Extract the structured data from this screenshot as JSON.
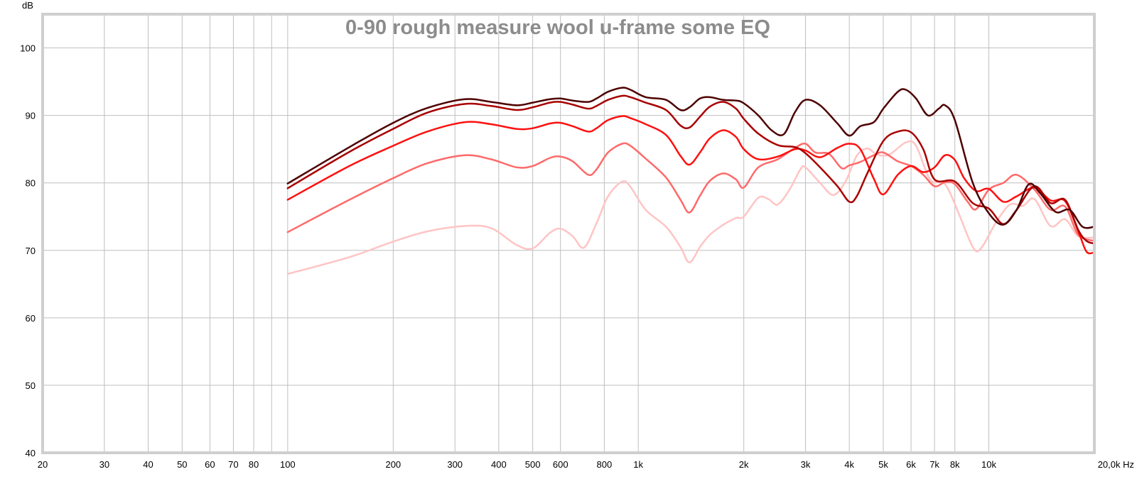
{
  "chart_data": {
    "type": "line",
    "title": "0-90 rough measure wool u-frame some EQ",
    "ylabel": "dB",
    "xunit": "Hz",
    "x_scale": "log",
    "xlim": [
      20,
      20000
    ],
    "ylim": [
      40,
      105
    ],
    "grid": true,
    "yticks": [
      {
        "value": 40,
        "label": "40"
      },
      {
        "value": 50,
        "label": "50"
      },
      {
        "value": 60,
        "label": "60"
      },
      {
        "value": 70,
        "label": "70"
      },
      {
        "value": 80,
        "label": "80"
      },
      {
        "value": 90,
        "label": "90"
      },
      {
        "value": 100,
        "label": "100"
      }
    ],
    "xticks": [
      {
        "value": 20,
        "label": "20"
      },
      {
        "value": 30,
        "label": "30"
      },
      {
        "value": 40,
        "label": "40"
      },
      {
        "value": 50,
        "label": "50"
      },
      {
        "value": 60,
        "label": "60"
      },
      {
        "value": 70,
        "label": "70"
      },
      {
        "value": 80,
        "label": "80"
      },
      {
        "value": 100,
        "label": "100"
      },
      {
        "value": 200,
        "label": "200"
      },
      {
        "value": 300,
        "label": "300"
      },
      {
        "value": 400,
        "label": "400"
      },
      {
        "value": 500,
        "label": "500"
      },
      {
        "value": 600,
        "label": "600"
      },
      {
        "value": 800,
        "label": "800"
      },
      {
        "value": 1000,
        "label": "1k"
      },
      {
        "value": 2000,
        "label": "2k"
      },
      {
        "value": 3000,
        "label": "3k"
      },
      {
        "value": 4000,
        "label": "4k"
      },
      {
        "value": 5000,
        "label": "5k"
      },
      {
        "value": 6000,
        "label": "6k"
      },
      {
        "value": 7000,
        "label": "7k"
      },
      {
        "value": 8000,
        "label": "8k"
      },
      {
        "value": 10000,
        "label": "10k"
      },
      {
        "value": 20000,
        "label": "20,0k Hz"
      }
    ],
    "minor_gridlines": [
      90
    ],
    "series": [
      {
        "color": "#ffc4c4",
        "points": [
          [
            100,
            66.5
          ],
          [
            150,
            69
          ],
          [
            200,
            71.3
          ],
          [
            250,
            72.8
          ],
          [
            320,
            73.6
          ],
          [
            380,
            73.3
          ],
          [
            450,
            70.8
          ],
          [
            500,
            70.3
          ],
          [
            560,
            72.6
          ],
          [
            600,
            73.2
          ],
          [
            650,
            72.1
          ],
          [
            700,
            70.4
          ],
          [
            760,
            74
          ],
          [
            820,
            78
          ],
          [
            900,
            80.2
          ],
          [
            950,
            79.4
          ],
          [
            1050,
            76
          ],
          [
            1200,
            73.5
          ],
          [
            1320,
            70.5
          ],
          [
            1400,
            68.2
          ],
          [
            1500,
            70.5
          ],
          [
            1600,
            72.3
          ],
          [
            1750,
            73.8
          ],
          [
            1900,
            74.8
          ],
          [
            2000,
            75
          ],
          [
            2200,
            77.8
          ],
          [
            2350,
            77.6
          ],
          [
            2500,
            76.8
          ],
          [
            2700,
            79
          ],
          [
            2900,
            82
          ],
          [
            3000,
            82.3
          ],
          [
            3300,
            80
          ],
          [
            3600,
            78.2
          ],
          [
            3900,
            80.2
          ],
          [
            4200,
            84
          ],
          [
            4500,
            85.1
          ],
          [
            4800,
            84.2
          ],
          [
            5200,
            84.2
          ],
          [
            5800,
            86
          ],
          [
            6200,
            85.5
          ],
          [
            6800,
            80.5
          ],
          [
            7500,
            79.8
          ],
          [
            8200,
            75.5
          ],
          [
            9000,
            70.5
          ],
          [
            9500,
            70.3
          ],
          [
            10500,
            74.2
          ],
          [
            11500,
            76.8
          ],
          [
            12500,
            76.6
          ],
          [
            13500,
            77.6
          ],
          [
            15000,
            73.6
          ],
          [
            16500,
            74.6
          ],
          [
            18000,
            72.1
          ],
          [
            20000,
            71.9
          ]
        ]
      },
      {
        "color": "#ff6a6a",
        "points": [
          [
            100,
            72.7
          ],
          [
            150,
            77.5
          ],
          [
            200,
            80.7
          ],
          [
            250,
            82.9
          ],
          [
            320,
            84.1
          ],
          [
            380,
            83.5
          ],
          [
            450,
            82.3
          ],
          [
            500,
            82.5
          ],
          [
            560,
            83.7
          ],
          [
            600,
            83.9
          ],
          [
            650,
            83.2
          ],
          [
            720,
            81.2
          ],
          [
            760,
            82
          ],
          [
            820,
            84.5
          ],
          [
            900,
            85.8
          ],
          [
            950,
            85.5
          ],
          [
            1050,
            83.6
          ],
          [
            1200,
            80.8
          ],
          [
            1320,
            77.5
          ],
          [
            1400,
            75.6
          ],
          [
            1500,
            78.1
          ],
          [
            1600,
            80.3
          ],
          [
            1750,
            81.4
          ],
          [
            1900,
            80.5
          ],
          [
            2000,
            79.3
          ],
          [
            2200,
            82.3
          ],
          [
            2500,
            83.5
          ],
          [
            2800,
            85.2
          ],
          [
            3000,
            85.8
          ],
          [
            3200,
            84.5
          ],
          [
            3500,
            84.3
          ],
          [
            3800,
            82.2
          ],
          [
            4000,
            82.6
          ],
          [
            4300,
            83.1
          ],
          [
            4700,
            84.1
          ],
          [
            5000,
            84.5
          ],
          [
            5500,
            83.2
          ],
          [
            6000,
            82.5
          ],
          [
            6500,
            81.2
          ],
          [
            7000,
            79.5
          ],
          [
            7500,
            80.1
          ],
          [
            8000,
            79.8
          ],
          [
            8700,
            77.2
          ],
          [
            9200,
            76.1
          ],
          [
            10000,
            79
          ],
          [
            11000,
            80
          ],
          [
            12000,
            81.2
          ],
          [
            13500,
            79
          ],
          [
            15000,
            76
          ],
          [
            16500,
            76.5
          ],
          [
            18000,
            72.3
          ],
          [
            20000,
            71.4
          ]
        ]
      },
      {
        "color": "#ff1010",
        "points": [
          [
            100,
            77.5
          ],
          [
            150,
            82.5
          ],
          [
            200,
            85.5
          ],
          [
            250,
            87.6
          ],
          [
            320,
            89
          ],
          [
            380,
            88.7
          ],
          [
            450,
            88
          ],
          [
            500,
            88.1
          ],
          [
            560,
            88.8
          ],
          [
            600,
            88.9
          ],
          [
            650,
            88.4
          ],
          [
            720,
            87.6
          ],
          [
            760,
            88.1
          ],
          [
            820,
            89.3
          ],
          [
            900,
            89.9
          ],
          [
            950,
            89.6
          ],
          [
            1050,
            88.7
          ],
          [
            1200,
            87.1
          ],
          [
            1320,
            84
          ],
          [
            1400,
            82.7
          ],
          [
            1500,
            84.5
          ],
          [
            1600,
            86.6
          ],
          [
            1750,
            87.8
          ],
          [
            1900,
            86.8
          ],
          [
            2000,
            85
          ],
          [
            2200,
            83.5
          ],
          [
            2500,
            83.9
          ],
          [
            2800,
            85
          ],
          [
            3000,
            84.8
          ],
          [
            3300,
            83.8
          ],
          [
            3700,
            85.2
          ],
          [
            4000,
            85.8
          ],
          [
            4300,
            85
          ],
          [
            4700,
            80.6
          ],
          [
            5000,
            78.3
          ],
          [
            5500,
            81.2
          ],
          [
            6000,
            82.5
          ],
          [
            6500,
            81.6
          ],
          [
            7000,
            82.3
          ],
          [
            7500,
            84.1
          ],
          [
            8000,
            83.4
          ],
          [
            8500,
            80.7
          ],
          [
            9200,
            78.8
          ],
          [
            10000,
            79.1
          ],
          [
            11000,
            77.2
          ],
          [
            12000,
            78
          ],
          [
            13500,
            79.3
          ],
          [
            15000,
            77.4
          ],
          [
            16500,
            77.3
          ],
          [
            18000,
            72.8
          ],
          [
            19000,
            69.8
          ],
          [
            20000,
            69.7
          ]
        ]
      },
      {
        "color": "#a80000",
        "points": [
          [
            100,
            79.2
          ],
          [
            150,
            84.6
          ],
          [
            200,
            88
          ],
          [
            250,
            90.4
          ],
          [
            320,
            91.7
          ],
          [
            380,
            91.4
          ],
          [
            450,
            90.8
          ],
          [
            500,
            91.2
          ],
          [
            560,
            91.9
          ],
          [
            600,
            92
          ],
          [
            650,
            91.6
          ],
          [
            720,
            91
          ],
          [
            760,
            91.4
          ],
          [
            820,
            92.3
          ],
          [
            900,
            92.9
          ],
          [
            950,
            92.7
          ],
          [
            1050,
            91.9
          ],
          [
            1200,
            90.8
          ],
          [
            1320,
            88.5
          ],
          [
            1400,
            88.2
          ],
          [
            1500,
            89.8
          ],
          [
            1600,
            91.3
          ],
          [
            1750,
            92
          ],
          [
            1900,
            91
          ],
          [
            2000,
            89.5
          ],
          [
            2200,
            87.3
          ],
          [
            2500,
            85.6
          ],
          [
            2800,
            85.3
          ],
          [
            3000,
            84.4
          ],
          [
            3300,
            82.3
          ],
          [
            3700,
            79.5
          ],
          [
            4000,
            77.2
          ],
          [
            4200,
            78
          ],
          [
            4500,
            81.4
          ],
          [
            5000,
            86.2
          ],
          [
            5500,
            87.6
          ],
          [
            6000,
            87.5
          ],
          [
            6500,
            85
          ],
          [
            7000,
            80.5
          ],
          [
            8000,
            80.2
          ],
          [
            9000,
            77
          ],
          [
            10000,
            76.2
          ],
          [
            11000,
            73.9
          ],
          [
            12000,
            76
          ],
          [
            13500,
            79.5
          ],
          [
            15000,
            77
          ],
          [
            16500,
            77.5
          ],
          [
            18000,
            73
          ],
          [
            19000,
            71.4
          ],
          [
            20000,
            71
          ]
        ]
      },
      {
        "color": "#4d0000",
        "points": [
          [
            100,
            79.9
          ],
          [
            150,
            85.3
          ],
          [
            200,
            88.9
          ],
          [
            250,
            91.1
          ],
          [
            320,
            92.4
          ],
          [
            380,
            92
          ],
          [
            450,
            91.5
          ],
          [
            500,
            91.9
          ],
          [
            560,
            92.4
          ],
          [
            600,
            92.5
          ],
          [
            650,
            92.2
          ],
          [
            720,
            92
          ],
          [
            760,
            92.5
          ],
          [
            820,
            93.5
          ],
          [
            900,
            94.1
          ],
          [
            950,
            93.8
          ],
          [
            1050,
            92.7
          ],
          [
            1200,
            92.3
          ],
          [
            1320,
            90.8
          ],
          [
            1400,
            91.2
          ],
          [
            1500,
            92.5
          ],
          [
            1600,
            92.7
          ],
          [
            1750,
            92.3
          ],
          [
            1900,
            92.2
          ],
          [
            2000,
            91.8
          ],
          [
            2200,
            90
          ],
          [
            2400,
            87.8
          ],
          [
            2600,
            87.2
          ],
          [
            2800,
            90.5
          ],
          [
            3000,
            92.3
          ],
          [
            3300,
            91.5
          ],
          [
            3700,
            88.8
          ],
          [
            4000,
            87
          ],
          [
            4300,
            88.4
          ],
          [
            4700,
            89
          ],
          [
            5000,
            91
          ],
          [
            5500,
            93.5
          ],
          [
            5800,
            93.8
          ],
          [
            6200,
            92.5
          ],
          [
            6700,
            90
          ],
          [
            7200,
            91
          ],
          [
            7500,
            91.5
          ],
          [
            8000,
            89.3
          ],
          [
            9000,
            80
          ],
          [
            10000,
            75.5
          ],
          [
            11000,
            73.8
          ],
          [
            12000,
            76
          ],
          [
            13000,
            79.8
          ],
          [
            14000,
            78.5
          ],
          [
            15500,
            75.7
          ],
          [
            17000,
            76
          ],
          [
            18500,
            73.5
          ],
          [
            20000,
            73.5
          ]
        ]
      }
    ]
  }
}
